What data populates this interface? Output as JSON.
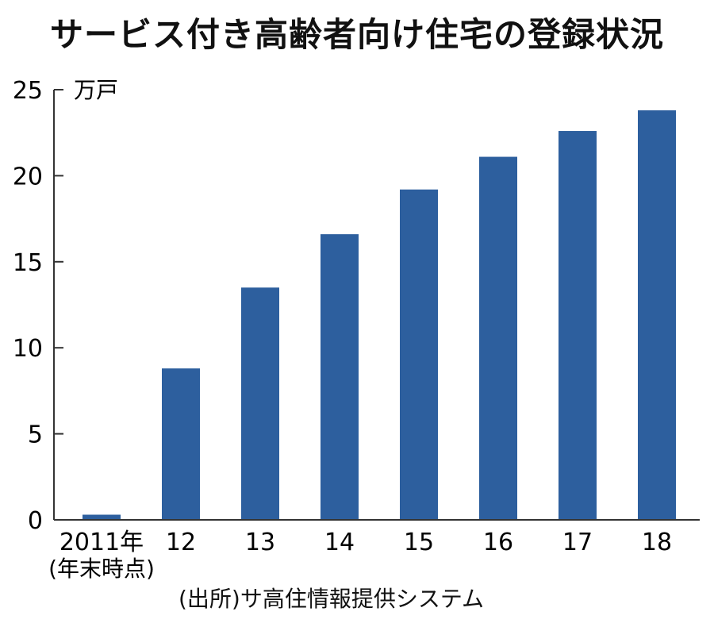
{
  "header": {
    "title": "サービス付き高齢者向け住宅の登録状況"
  },
  "chart_data": {
    "type": "bar",
    "title": "サービス付き高齢者向け住宅の登録状況",
    "unit": "万戸",
    "categories": [
      "2011年",
      "12",
      "13",
      "14",
      "15",
      "16",
      "17",
      "18"
    ],
    "category_note": "(年末時点)",
    "values": [
      0.3,
      8.8,
      13.5,
      16.6,
      19.2,
      21.1,
      22.6,
      23.8
    ],
    "ylim": [
      0,
      25
    ],
    "yticks": [
      0,
      5,
      10,
      15,
      20,
      25
    ],
    "bar_color": "#2d5f9e",
    "grid": false
  },
  "footer": {
    "source": "(出所)サ高住情報提供システム"
  }
}
